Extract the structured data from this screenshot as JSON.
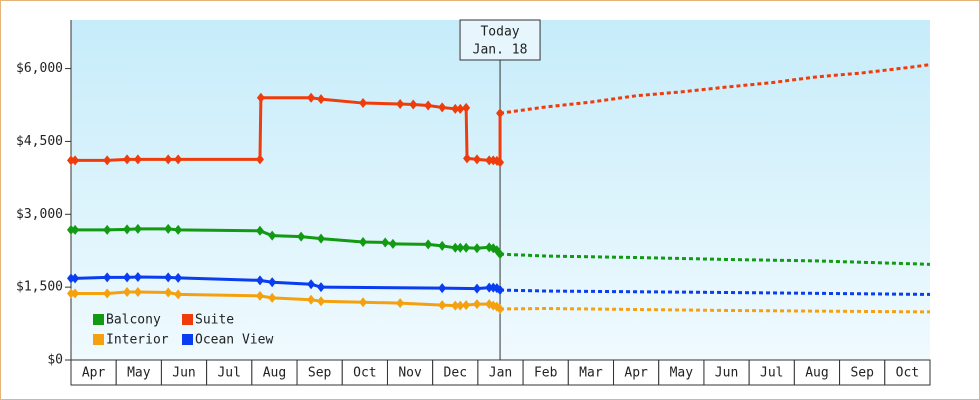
{
  "chart_data": {
    "type": "line",
    "ylim": [
      0,
      7000
    ],
    "yticks": [
      {
        "value": 0,
        "label": "$0"
      },
      {
        "value": 1500,
        "label": "$1,500"
      },
      {
        "value": 3000,
        "label": "$3,000"
      },
      {
        "value": 4500,
        "label": "$4,500"
      },
      {
        "value": 6000,
        "label": "$6,000"
      }
    ],
    "xlim": [
      0,
      19
    ],
    "xticks": [
      {
        "value": 0.5,
        "label": "Apr"
      },
      {
        "value": 1.5,
        "label": "May"
      },
      {
        "value": 2.5,
        "label": "Jun"
      },
      {
        "value": 3.5,
        "label": "Jul"
      },
      {
        "value": 4.5,
        "label": "Aug"
      },
      {
        "value": 5.5,
        "label": "Sep"
      },
      {
        "value": 6.5,
        "label": "Oct"
      },
      {
        "value": 7.5,
        "label": "Nov"
      },
      {
        "value": 8.5,
        "label": "Dec"
      },
      {
        "value": 9.5,
        "label": "Jan"
      },
      {
        "value": 10.5,
        "label": "Feb"
      },
      {
        "value": 11.5,
        "label": "Mar"
      },
      {
        "value": 12.5,
        "label": "Apr"
      },
      {
        "value": 13.5,
        "label": "May"
      },
      {
        "value": 14.5,
        "label": "Jun"
      },
      {
        "value": 15.5,
        "label": "Jul"
      },
      {
        "value": 16.5,
        "label": "Aug"
      },
      {
        "value": 17.5,
        "label": "Sep"
      },
      {
        "value": 18.5,
        "label": "Oct"
      }
    ],
    "today": {
      "x": 9.49,
      "lines": [
        "Today",
        "Jan. 18"
      ]
    },
    "series": [
      {
        "name": "Balcony",
        "color": "#129a12",
        "x": [
          0,
          0.09,
          0.8,
          1.24,
          1.48,
          2.15,
          2.37,
          4.18,
          4.45,
          5.09,
          5.53,
          6.46,
          6.95,
          7.12,
          7.9,
          8.21,
          8.5,
          8.61,
          8.74,
          8.98,
          9.25,
          9.34,
          9.42,
          9.49
        ],
        "values": [
          2680,
          2680,
          2680,
          2690,
          2700,
          2700,
          2680,
          2660,
          2560,
          2540,
          2500,
          2430,
          2420,
          2390,
          2380,
          2350,
          2310,
          2310,
          2310,
          2300,
          2320,
          2300,
          2260,
          2180
        ],
        "forecast_x": [
          9.49,
          10.5,
          12.5,
          14.5,
          16.5,
          19
        ],
        "forecast_values": [
          2180,
          2140,
          2110,
          2070,
          2040,
          1970
        ]
      },
      {
        "name": "Suite",
        "color": "#f03c0a",
        "x": [
          0,
          0.09,
          0.8,
          1.24,
          1.48,
          2.15,
          2.37,
          4.18,
          4.2,
          5.31,
          5.53,
          6.46,
          7.28,
          7.57,
          7.9,
          8.21,
          8.5,
          8.61,
          8.74,
          8.76,
          8.98,
          9.25,
          9.34,
          9.42,
          9.49,
          9.49
        ],
        "values": [
          4110,
          4110,
          4110,
          4130,
          4130,
          4130,
          4130,
          4130,
          5400,
          5400,
          5370,
          5290,
          5270,
          5260,
          5240,
          5200,
          5170,
          5170,
          5190,
          4150,
          4130,
          4110,
          4110,
          4100,
          4070,
          5080
        ],
        "forecast_x": [
          9.49,
          10.5,
          11.5,
          12.5,
          13.5,
          14.5,
          15.5,
          16.5,
          17.5,
          18.5,
          19
        ],
        "forecast_values": [
          5080,
          5210,
          5310,
          5440,
          5520,
          5620,
          5710,
          5830,
          5910,
          6020,
          6080
        ]
      },
      {
        "name": "Interior",
        "color": "#f5a10f",
        "x": [
          0,
          0.09,
          0.8,
          1.24,
          1.48,
          2.15,
          2.37,
          4.18,
          4.45,
          5.31,
          5.53,
          6.46,
          7.28,
          8.21,
          8.5,
          8.61,
          8.74,
          8.98,
          9.25,
          9.34,
          9.42,
          9.49
        ],
        "values": [
          1370,
          1370,
          1370,
          1400,
          1400,
          1390,
          1350,
          1320,
          1280,
          1240,
          1210,
          1190,
          1170,
          1130,
          1120,
          1120,
          1130,
          1150,
          1150,
          1120,
          1100,
          1050
        ],
        "forecast_x": [
          9.49,
          10.5,
          14.5,
          19
        ],
        "forecast_values": [
          1050,
          1060,
          1020,
          990
        ]
      },
      {
        "name": "Ocean View",
        "color": "#0a3cf0",
        "x": [
          0,
          0.09,
          0.8,
          1.24,
          1.48,
          2.15,
          2.37,
          4.18,
          4.45,
          5.31,
          5.53,
          8.21,
          8.98,
          9.25,
          9.34,
          9.42,
          9.49
        ],
        "values": [
          1680,
          1680,
          1700,
          1700,
          1710,
          1700,
          1690,
          1640,
          1600,
          1560,
          1500,
          1480,
          1470,
          1490,
          1490,
          1480,
          1440
        ],
        "forecast_x": [
          9.49,
          10.5,
          14.5,
          19
        ],
        "forecast_values": [
          1440,
          1420,
          1390,
          1350
        ]
      }
    ]
  }
}
